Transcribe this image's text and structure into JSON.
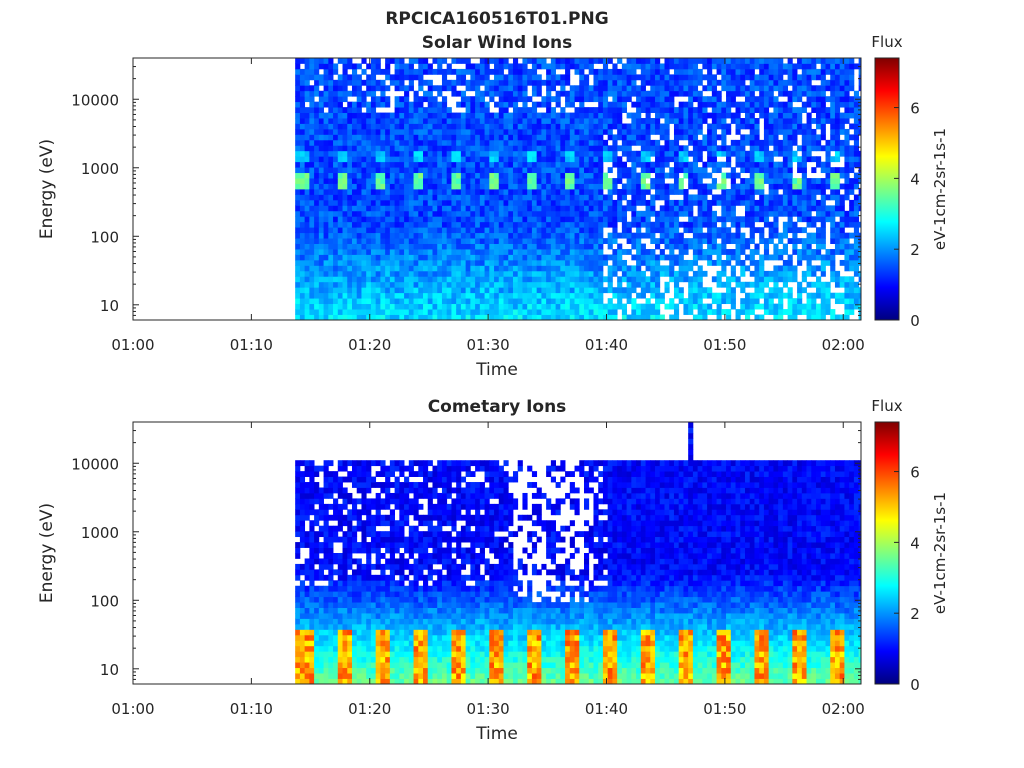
{
  "figure_title": "RPCICA160516T01.PNG",
  "colors": {
    "axis": "#262626",
    "background": "#ffffff",
    "colormap": [
      "#00007f",
      "#0000ff",
      "#007fff",
      "#00ffff",
      "#7fff7f",
      "#ffff00",
      "#ff7f00",
      "#ff0000",
      "#7f0000"
    ]
  },
  "chart_data": [
    {
      "type": "heatmap",
      "title": "Solar Wind Ions",
      "xlabel": "Time",
      "ylabel": "Energy (eV)",
      "x_ticks": [
        "01:00",
        "01:10",
        "01:20",
        "01:30",
        "01:40",
        "01:50",
        "02:00"
      ],
      "y_ticks": [
        "10",
        "100",
        "1000",
        "10000"
      ],
      "y_scale": "log",
      "ylim": [
        6,
        40000
      ],
      "x_range_minutes": [
        0,
        61.5
      ],
      "data_start_minutes": 13.7,
      "mode_change_minutes": 39.3,
      "colorbar": {
        "title": "Flux",
        "label": "eV-1cm-2sr-1s-1",
        "ticks": [
          "0",
          "2",
          "4",
          "6"
        ],
        "range": [
          0,
          7.4
        ]
      },
      "features": [
        {
          "name": "bright energy band",
          "energy_ev": 650,
          "level": 3.2
        },
        {
          "name": "secondary energy band",
          "energy_ev": 1500,
          "level": 2.4
        },
        {
          "name": "low-energy background",
          "energy_ev": 12,
          "level": 2.2
        }
      ]
    },
    {
      "type": "heatmap",
      "title": "Cometary Ions",
      "xlabel": "Time",
      "ylabel": "Energy (eV)",
      "x_ticks": [
        "01:00",
        "01:10",
        "01:20",
        "01:30",
        "01:40",
        "01:50",
        "02:00"
      ],
      "y_ticks": [
        "10",
        "100",
        "1000",
        "10000"
      ],
      "y_scale": "log",
      "ylim": [
        6,
        40000
      ],
      "x_range_minutes": [
        0,
        61.5
      ],
      "data_start_minutes": 13.7,
      "colorbar": {
        "title": "Flux",
        "label": "eV-1cm-2sr-1s-1",
        "ticks": [
          "0",
          "2",
          "4",
          "6"
        ],
        "range": [
          0,
          7.4
        ]
      },
      "features": [
        {
          "name": "low-energy pulses",
          "energy_ev": 18,
          "level": 5.3
        },
        {
          "name": "upper energy cutoff",
          "energy_ev": 10000,
          "level": 1.0
        }
      ]
    }
  ]
}
